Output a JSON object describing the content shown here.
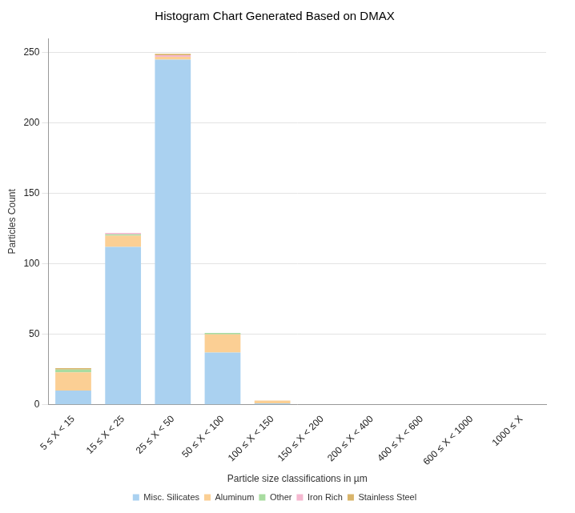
{
  "chart_data": {
    "type": "bar",
    "title": "Histogram Chart Generated Based on DMAX",
    "x_label": "Particle size classifications in µm",
    "y_label": "Particles Count",
    "categories": [
      "5 ≤ X < 15",
      "15 ≤ X < 25",
      "25 ≤ X < 50",
      "50 ≤ X < 100",
      "100 ≤ X < 150",
      "150 ≤ X < 200",
      "200 ≤ X < 400",
      "400 ≤ X < 600",
      "600 ≤ X < 1000",
      "1000 ≤ X"
    ],
    "series": [
      {
        "name": "Misc. Silicates",
        "color": "#aad1f0",
        "values": [
          10,
          112,
          245,
          37,
          1,
          0,
          0,
          0,
          0,
          0
        ]
      },
      {
        "name": "Aluminum",
        "color": "#fbcf94",
        "values": [
          13,
          8,
          2,
          13,
          2,
          0,
          0,
          0,
          0,
          0
        ]
      },
      {
        "name": "Other",
        "color": "#a8dca0",
        "values": [
          2,
          1,
          0,
          1,
          0,
          0,
          0,
          0,
          0,
          0
        ]
      },
      {
        "name": "Iron Rich",
        "color": "#f5b8d0",
        "values": [
          0,
          1,
          1,
          0,
          0,
          0,
          0,
          0,
          0,
          0
        ]
      },
      {
        "name": "Stainless Steel",
        "color": "#d9b56b",
        "values": [
          1,
          0,
          1,
          0,
          0,
          0,
          0,
          0,
          0,
          0
        ]
      }
    ],
    "stacked": true,
    "ylim": [
      0,
      260
    ],
    "yticks": [
      0,
      50,
      100,
      150,
      200,
      250
    ],
    "grid": true,
    "legend": "bottom"
  }
}
